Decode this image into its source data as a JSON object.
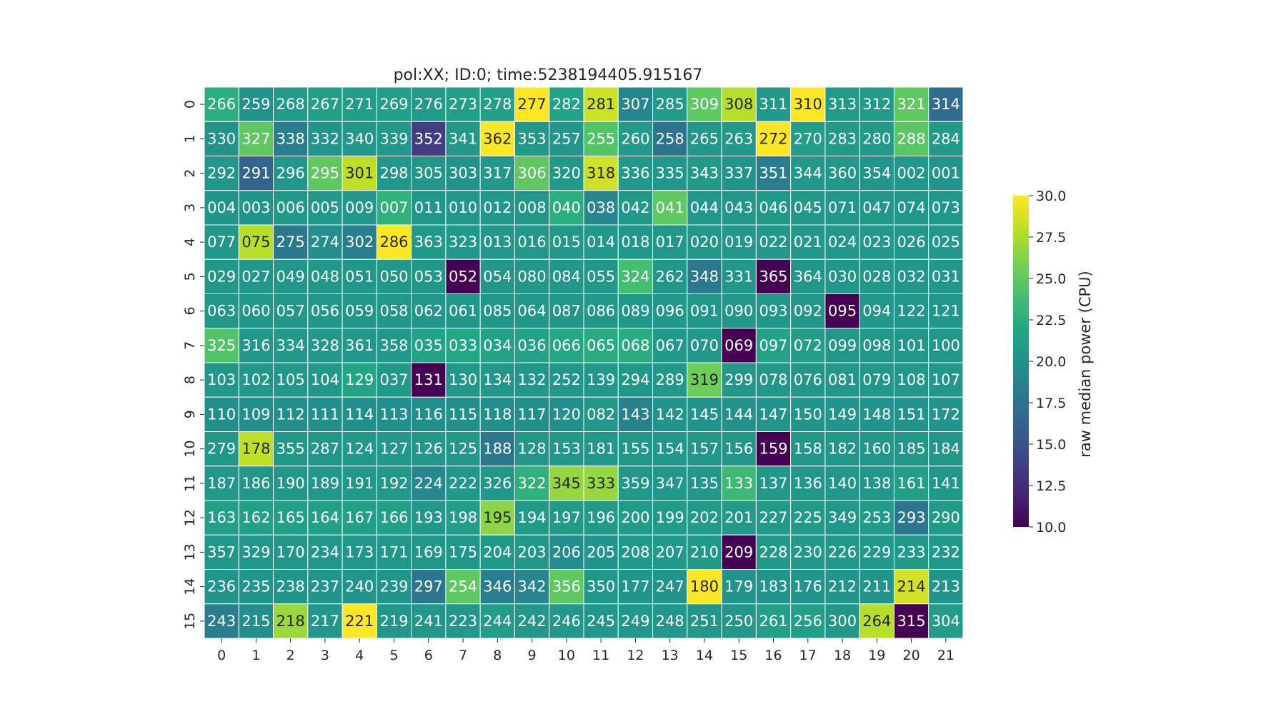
{
  "chart_data": {
    "type": "heatmap",
    "title": "pol:XX; ID:0; time:5238194405.915167",
    "colorbar": {
      "label": "raw median power (CPU)",
      "range": [
        10.0,
        30.0
      ],
      "ticks": [
        "10.0",
        "12.5",
        "15.0",
        "17.5",
        "20.0",
        "22.5",
        "25.0",
        "27.5",
        "30.0"
      ],
      "colormap": "viridis"
    },
    "x_ticks": [
      "0",
      "1",
      "2",
      "3",
      "4",
      "5",
      "6",
      "7",
      "8",
      "9",
      "10",
      "11",
      "12",
      "13",
      "14",
      "15",
      "16",
      "17",
      "18",
      "19",
      "20",
      "21"
    ],
    "y_ticks": [
      "0",
      "1",
      "2",
      "3",
      "4",
      "5",
      "6",
      "7",
      "8",
      "9",
      "10",
      "11",
      "12",
      "13",
      "14",
      "15"
    ],
    "labels": [
      [
        "266",
        "259",
        "268",
        "267",
        "271",
        "269",
        "276",
        "273",
        "278",
        "277",
        "282",
        "281",
        "307",
        "285",
        "309",
        "308",
        "311",
        "310",
        "313",
        "312",
        "321",
        "314"
      ],
      [
        "330",
        "327",
        "338",
        "332",
        "340",
        "339",
        "352",
        "341",
        "362",
        "353",
        "257",
        "255",
        "260",
        "258",
        "265",
        "263",
        "272",
        "270",
        "283",
        "280",
        "288",
        "284"
      ],
      [
        "292",
        "291",
        "296",
        "295",
        "301",
        "298",
        "305",
        "303",
        "317",
        "306",
        "320",
        "318",
        "336",
        "335",
        "343",
        "337",
        "351",
        "344",
        "360",
        "354",
        "002",
        "001"
      ],
      [
        "004",
        "003",
        "006",
        "005",
        "009",
        "007",
        "011",
        "010",
        "012",
        "008",
        "040",
        "038",
        "042",
        "041",
        "044",
        "043",
        "046",
        "045",
        "071",
        "047",
        "074",
        "073"
      ],
      [
        "077",
        "075",
        "275",
        "274",
        "302",
        "286",
        "363",
        "323",
        "013",
        "016",
        "015",
        "014",
        "018",
        "017",
        "020",
        "019",
        "022",
        "021",
        "024",
        "023",
        "026",
        "025"
      ],
      [
        "029",
        "027",
        "049",
        "048",
        "051",
        "050",
        "053",
        "052",
        "054",
        "080",
        "084",
        "055",
        "324",
        "262",
        "348",
        "331",
        "365",
        "364",
        "030",
        "028",
        "032",
        "031"
      ],
      [
        "063",
        "060",
        "057",
        "056",
        "059",
        "058",
        "062",
        "061",
        "085",
        "064",
        "087",
        "086",
        "089",
        "096",
        "091",
        "090",
        "093",
        "092",
        "095",
        "094",
        "122",
        "121"
      ],
      [
        "325",
        "316",
        "334",
        "328",
        "361",
        "358",
        "035",
        "033",
        "034",
        "036",
        "066",
        "065",
        "068",
        "067",
        "070",
        "069",
        "097",
        "072",
        "099",
        "098",
        "101",
        "100"
      ],
      [
        "103",
        "102",
        "105",
        "104",
        "129",
        "037",
        "131",
        "130",
        "134",
        "132",
        "252",
        "139",
        "294",
        "289",
        "319",
        "299",
        "078",
        "076",
        "081",
        "079",
        "108",
        "107"
      ],
      [
        "110",
        "109",
        "112",
        "111",
        "114",
        "113",
        "116",
        "115",
        "118",
        "117",
        "120",
        "082",
        "143",
        "142",
        "145",
        "144",
        "147",
        "150",
        "149",
        "148",
        "151",
        "172"
      ],
      [
        "279",
        "178",
        "355",
        "287",
        "124",
        "127",
        "126",
        "125",
        "188",
        "128",
        "153",
        "181",
        "155",
        "154",
        "157",
        "156",
        "159",
        "158",
        "182",
        "160",
        "185",
        "184"
      ],
      [
        "187",
        "186",
        "190",
        "189",
        "191",
        "192",
        "224",
        "222",
        "326",
        "322",
        "345",
        "333",
        "359",
        "347",
        "135",
        "133",
        "137",
        "136",
        "140",
        "138",
        "161",
        "141"
      ],
      [
        "163",
        "162",
        "165",
        "164",
        "167",
        "166",
        "193",
        "198",
        "195",
        "194",
        "197",
        "196",
        "200",
        "199",
        "202",
        "201",
        "227",
        "225",
        "349",
        "253",
        "293",
        "290"
      ],
      [
        "357",
        "329",
        "170",
        "234",
        "173",
        "171",
        "169",
        "175",
        "204",
        "203",
        "206",
        "205",
        "208",
        "207",
        "210",
        "209",
        "228",
        "230",
        "226",
        "229",
        "233",
        "232"
      ],
      [
        "236",
        "235",
        "238",
        "237",
        "240",
        "239",
        "297",
        "254",
        "346",
        "342",
        "356",
        "350",
        "177",
        "247",
        "180",
        "179",
        "183",
        "176",
        "212",
        "211",
        "214",
        "213"
      ],
      [
        "243",
        "215",
        "218",
        "217",
        "221",
        "219",
        "241",
        "223",
        "244",
        "242",
        "246",
        "245",
        "249",
        "248",
        "251",
        "250",
        "261",
        "256",
        "300",
        "264",
        "315",
        "304"
      ]
    ],
    "values": [
      [
        22.6,
        20.2,
        20.8,
        21.2,
        21.0,
        21.2,
        20.9,
        21.3,
        21.3,
        30.0,
        21.5,
        28.5,
        19.2,
        20.8,
        25.0,
        27.8,
        20.6,
        30.0,
        20.9,
        20.9,
        25.0,
        17.0
      ],
      [
        20.2,
        25.0,
        18.5,
        20.3,
        20.6,
        20.6,
        13.5,
        20.6,
        30.0,
        20.7,
        20.4,
        24.5,
        20.8,
        17.6,
        20.6,
        20.6,
        30.0,
        21.0,
        20.9,
        20.9,
        24.8,
        20.9
      ],
      [
        20.5,
        16.5,
        20.4,
        25.0,
        28.0,
        20.4,
        20.5,
        20.2,
        20.6,
        25.0,
        20.7,
        28.5,
        20.6,
        20.4,
        20.9,
        20.3,
        18.5,
        20.6,
        20.5,
        20.3,
        20.5,
        20.3
      ],
      [
        20.3,
        20.3,
        20.6,
        20.6,
        20.6,
        22.8,
        20.5,
        20.5,
        20.6,
        20.5,
        22.5,
        19.0,
        20.6,
        25.0,
        20.5,
        20.6,
        20.7,
        20.6,
        20.5,
        20.5,
        20.5,
        20.5
      ],
      [
        20.5,
        27.8,
        18.0,
        19.8,
        18.5,
        30.0,
        20.7,
        20.7,
        20.6,
        20.6,
        20.6,
        20.5,
        20.5,
        20.5,
        20.6,
        20.6,
        20.6,
        20.6,
        20.6,
        20.6,
        20.6,
        20.6
      ],
      [
        20.5,
        20.5,
        20.5,
        20.5,
        20.5,
        20.5,
        20.5,
        10.0,
        20.5,
        20.5,
        20.5,
        20.5,
        24.0,
        20.5,
        18.0,
        20.5,
        10.0,
        20.5,
        20.5,
        20.5,
        20.5,
        20.5
      ],
      [
        20.5,
        20.5,
        20.5,
        20.5,
        20.5,
        20.5,
        20.5,
        20.5,
        20.5,
        20.5,
        20.5,
        20.5,
        20.5,
        20.5,
        20.5,
        20.5,
        20.5,
        20.5,
        10.0,
        20.5,
        20.5,
        20.5
      ],
      [
        24.5,
        20.6,
        20.6,
        20.6,
        20.6,
        20.6,
        21.5,
        21.8,
        21.6,
        21.5,
        21.9,
        22.4,
        22.4,
        20.7,
        20.6,
        10.0,
        21.6,
        21.0,
        20.5,
        20.5,
        20.5,
        20.5
      ],
      [
        20.5,
        20.5,
        20.5,
        20.5,
        21.7,
        20.7,
        10.0,
        20.5,
        20.5,
        20.5,
        20.5,
        20.5,
        20.5,
        20.5,
        25.5,
        20.5,
        20.5,
        20.5,
        20.5,
        20.5,
        20.5,
        20.5
      ],
      [
        19.9,
        19.9,
        19.9,
        19.9,
        19.9,
        19.9,
        19.9,
        19.9,
        19.9,
        19.9,
        19.9,
        20.5,
        18.8,
        20.3,
        20.3,
        20.2,
        20.3,
        20.3,
        20.3,
        20.3,
        20.3,
        20.3
      ],
      [
        20.5,
        28.0,
        20.7,
        20.5,
        20.6,
        20.6,
        20.6,
        20.6,
        18.0,
        20.5,
        20.5,
        20.5,
        20.5,
        20.5,
        20.5,
        20.5,
        10.0,
        20.5,
        20.5,
        20.5,
        20.5,
        20.5
      ],
      [
        20.5,
        20.5,
        20.5,
        20.5,
        20.5,
        20.5,
        19.3,
        20.5,
        20.5,
        22.8,
        26.8,
        26.8,
        20.5,
        20.5,
        20.5,
        23.5,
        20.5,
        20.5,
        20.5,
        20.5,
        21.3,
        20.5
      ],
      [
        21.2,
        21.2,
        21.2,
        21.2,
        21.2,
        21.2,
        20.6,
        21.0,
        26.5,
        20.9,
        20.9,
        20.9,
        20.9,
        20.9,
        20.9,
        20.9,
        20.9,
        20.9,
        20.5,
        20.9,
        17.8,
        20.9
      ],
      [
        20.5,
        20.5,
        20.5,
        20.5,
        20.5,
        20.5,
        20.5,
        20.5,
        20.7,
        20.7,
        19.7,
        20.3,
        20.7,
        20.7,
        20.7,
        10.0,
        20.7,
        20.7,
        20.7,
        20.7,
        20.7,
        20.7
      ],
      [
        20.3,
        20.3,
        20.3,
        20.3,
        20.3,
        20.3,
        17.8,
        25.0,
        18.4,
        19.0,
        25.0,
        20.5,
        20.3,
        20.3,
        30.0,
        20.3,
        20.3,
        20.3,
        20.3,
        20.3,
        28.7,
        20.3
      ],
      [
        18.5,
        19.8,
        27.0,
        20.5,
        30.0,
        20.5,
        20.5,
        20.5,
        21.0,
        20.5,
        20.5,
        20.5,
        20.5,
        20.5,
        20.5,
        20.5,
        21.3,
        21.3,
        20.5,
        27.8,
        10.0,
        21.0
      ]
    ]
  }
}
